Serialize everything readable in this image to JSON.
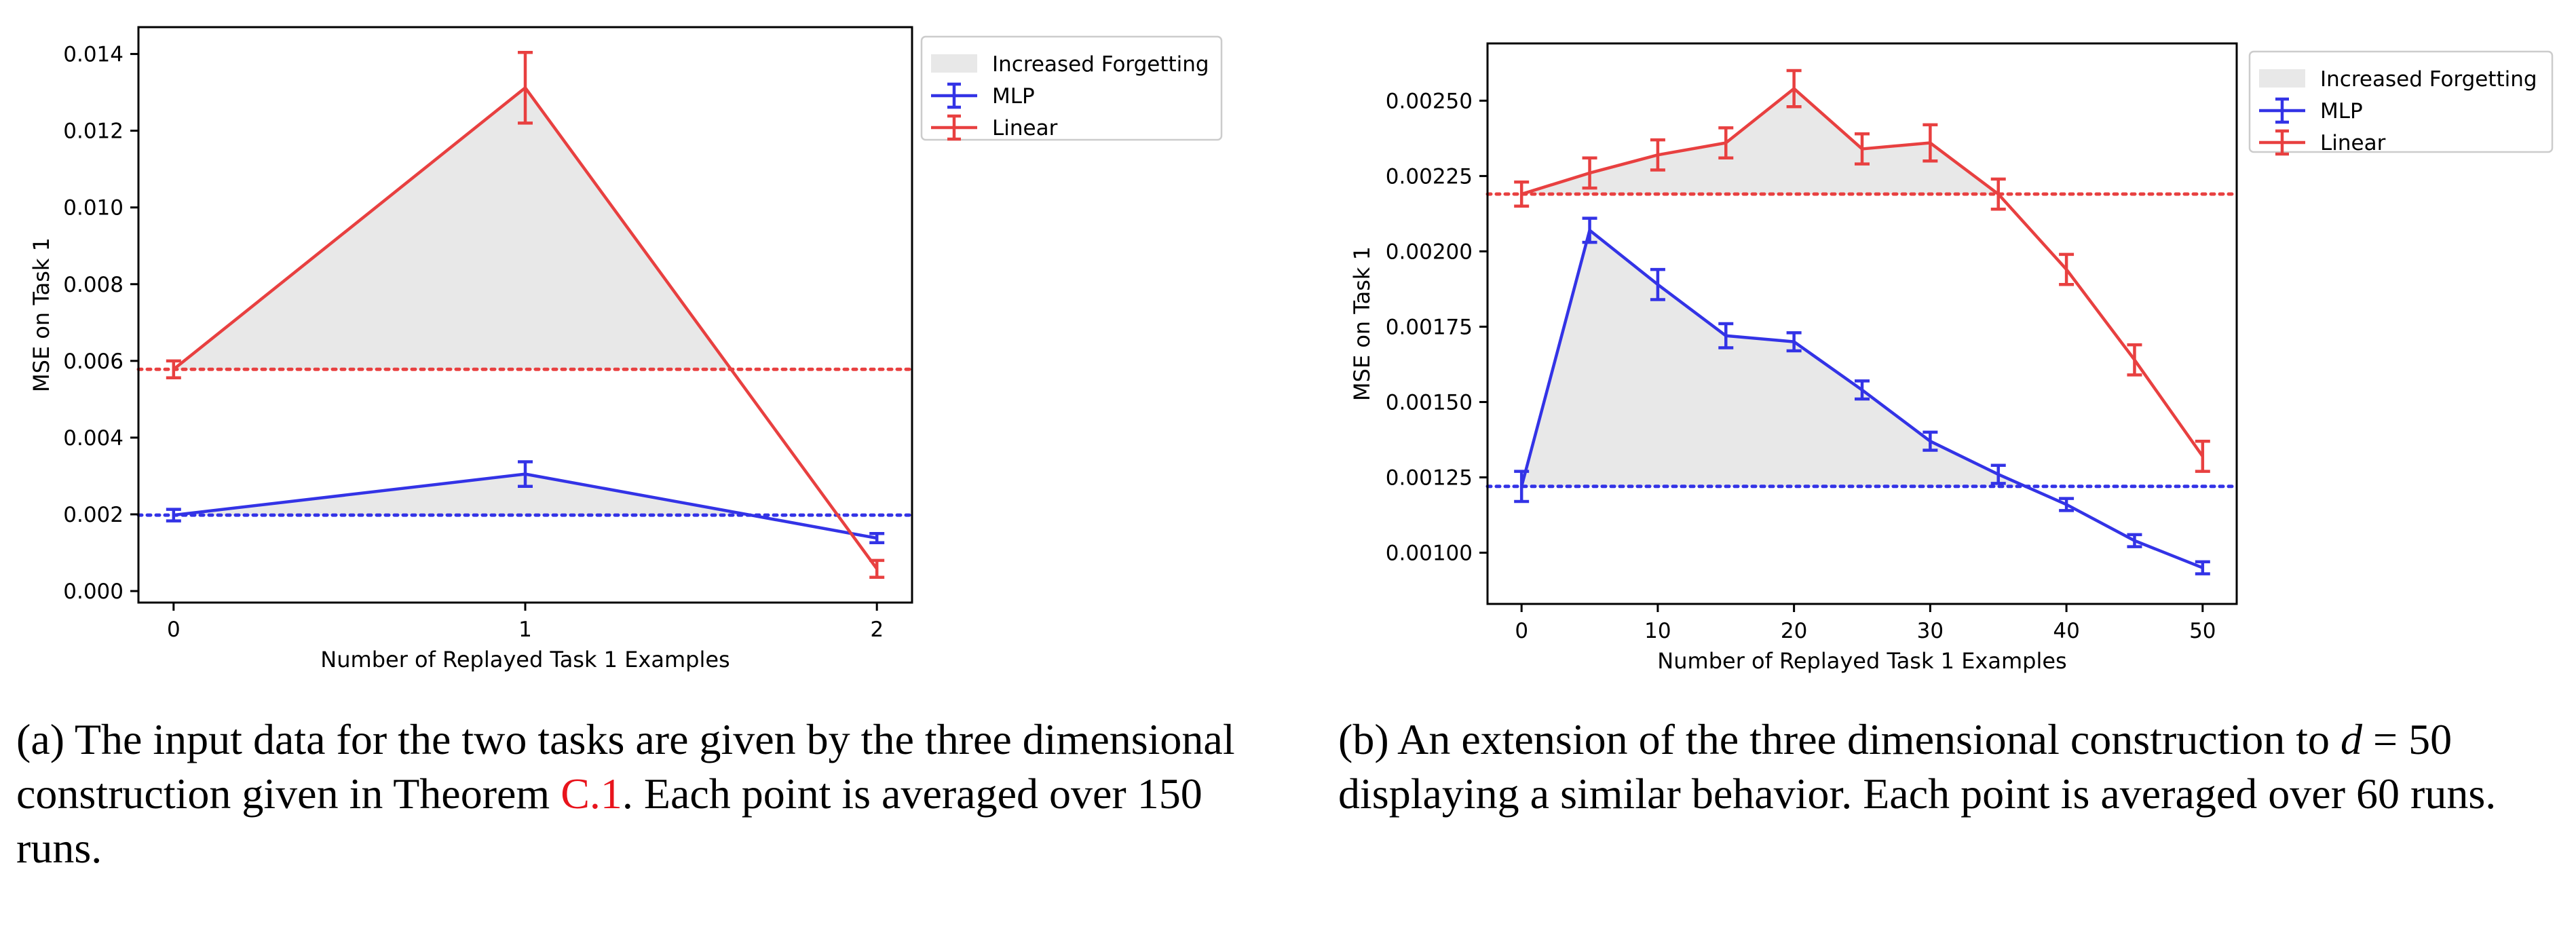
{
  "chart_data": [
    {
      "type": "line",
      "xlabel": "Number of Replayed Task 1 Examples",
      "ylabel": "MSE on Task 1",
      "xlim": [
        -0.1,
        2.1
      ],
      "ylim": [
        -0.0003,
        0.0147
      ],
      "xticks": [
        0,
        1,
        2
      ],
      "xtick_labels": [
        "0",
        "1",
        "2"
      ],
      "yticks": [
        0.0,
        0.002,
        0.004,
        0.006,
        0.008,
        0.01,
        0.012,
        0.014
      ],
      "ytick_labels": [
        "0.000",
        "0.002",
        "0.004",
        "0.006",
        "0.008",
        "0.010",
        "0.012",
        "0.014"
      ],
      "legend": {
        "position": "outside-right",
        "entries": [
          "Increased Forgetting",
          "MLP",
          "Linear"
        ]
      },
      "fill_label": "Increased Forgetting",
      "series": [
        {
          "name": "MLP",
          "color": "#3333e6",
          "x": [
            0,
            1,
            2
          ],
          "y": [
            0.00198,
            0.00305,
            0.00138
          ],
          "err": [
            0.00015,
            0.00032,
            0.00012
          ],
          "baseline": 0.00198
        },
        {
          "name": "Linear",
          "color": "#e84040",
          "x": [
            0,
            1,
            2
          ],
          "y": [
            0.00578,
            0.01312,
            0.00058
          ],
          "err": [
            0.00022,
            0.00092,
            0.00022
          ],
          "baseline": 0.00578
        }
      ]
    },
    {
      "type": "line",
      "xlabel": "Number of Replayed Task 1 Examples",
      "ylabel": "MSE on Task 1",
      "xlim": [
        -2.5,
        52.5
      ],
      "ylim": [
        0.00083,
        0.00269
      ],
      "xticks": [
        0,
        10,
        20,
        30,
        40,
        50
      ],
      "xtick_labels": [
        "0",
        "10",
        "20",
        "30",
        "40",
        "50"
      ],
      "yticks": [
        0.001,
        0.00125,
        0.0015,
        0.00175,
        0.002,
        0.00225,
        0.0025
      ],
      "ytick_labels": [
        "0.00100",
        "0.00125",
        "0.00150",
        "0.00175",
        "0.00200",
        "0.00225",
        "0.00250"
      ],
      "legend": {
        "position": "outside-right",
        "entries": [
          "Increased Forgetting",
          "MLP",
          "Linear"
        ]
      },
      "fill_label": "Increased Forgetting",
      "series": [
        {
          "name": "MLP",
          "color": "#3333e6",
          "x": [
            0,
            5,
            10,
            15,
            20,
            25,
            30,
            35,
            40,
            45,
            50
          ],
          "y": [
            0.00122,
            0.00207,
            0.00189,
            0.00172,
            0.0017,
            0.00154,
            0.00137,
            0.00126,
            0.00116,
            0.00104,
            0.00095
          ],
          "err": [
            5e-05,
            4e-05,
            5e-05,
            4e-05,
            3e-05,
            3e-05,
            3e-05,
            3e-05,
            2e-05,
            2e-05,
            2e-05
          ],
          "baseline": 0.00122
        },
        {
          "name": "Linear",
          "color": "#e84040",
          "x": [
            0,
            5,
            10,
            15,
            20,
            25,
            30,
            35,
            40,
            45,
            50
          ],
          "y": [
            0.00219,
            0.00226,
            0.00232,
            0.00236,
            0.00254,
            0.00234,
            0.00236,
            0.00219,
            0.00194,
            0.00164,
            0.00132
          ],
          "err": [
            4e-05,
            5e-05,
            5e-05,
            5e-05,
            6e-05,
            5e-05,
            6e-05,
            5e-05,
            5e-05,
            5e-05,
            5e-05
          ],
          "baseline": 0.00219
        }
      ]
    }
  ],
  "fill_color": "#e8e8e8",
  "captions": {
    "a": {
      "pre": "(a) The input data for the two tasks are given by the three dimensional construction given in Theorem ",
      "ref": "C.1",
      "post": ". Each point is averaged over 150 runs."
    },
    "b": {
      "pre": "(b) An extension of the three dimensional construction to ",
      "math_var": "d",
      "math_rest": " = 50",
      "post": " displaying a similar behavior. Each point is averaged over 60 runs."
    }
  }
}
